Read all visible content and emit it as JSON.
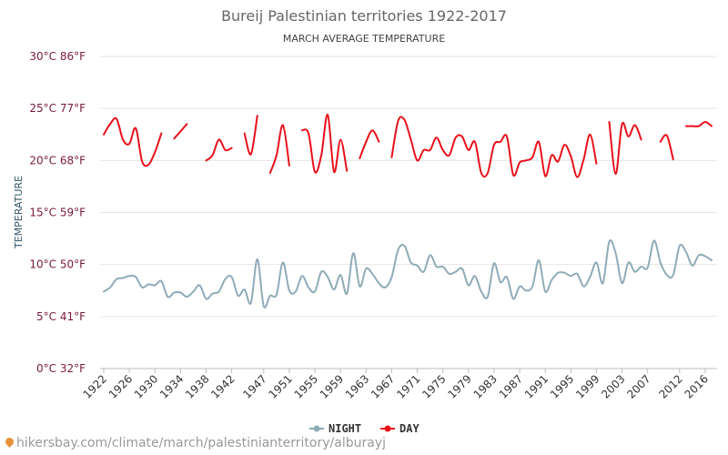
{
  "chart_data": {
    "type": "line",
    "title": "Bureij Palestinian territories 1922-2017",
    "subtitle": "MARCH AVERAGE TEMPERATURE",
    "ylabel": "TEMPERATURE",
    "ylim": [
      0,
      30
    ],
    "xlim": [
      1922,
      2017
    ],
    "yticks": [
      {
        "value": 0,
        "label": "0°C 32°F"
      },
      {
        "value": 5,
        "label": "5°C 41°F"
      },
      {
        "value": 10,
        "label": "10°C 50°F"
      },
      {
        "value": 15,
        "label": "15°C 59°F"
      },
      {
        "value": 20,
        "label": "20°C 68°F"
      },
      {
        "value": 25,
        "label": "25°C 77°F"
      },
      {
        "value": 30,
        "label": "30°C 86°F"
      }
    ],
    "xticks": [
      1922,
      1926,
      1930,
      1934,
      1938,
      1942,
      1947,
      1951,
      1955,
      1959,
      1963,
      1967,
      1971,
      1975,
      1979,
      1983,
      1987,
      1991,
      1995,
      1999,
      2003,
      2007,
      2012,
      2016
    ],
    "grid": true,
    "legend_position": "bottom",
    "series": [
      {
        "name": "NIGHT",
        "color": "#8fabb8",
        "x": [
          1922,
          1923,
          1924,
          1925,
          1926,
          1927,
          1928,
          1929,
          1930,
          1931,
          1932,
          1933,
          1934,
          1935,
          1936,
          1937,
          1938,
          1939,
          1940,
          1941,
          1942,
          1943,
          1944,
          1945,
          1946,
          1947,
          1948,
          1949,
          1950,
          1951,
          1952,
          1953,
          1954,
          1955,
          1956,
          1957,
          1958,
          1959,
          1960,
          1961,
          1962,
          1963,
          1964,
          1965,
          1966,
          1967,
          1968,
          1969,
          1970,
          1971,
          1972,
          1973,
          1974,
          1975,
          1976,
          1977,
          1978,
          1979,
          1980,
          1981,
          1982,
          1983,
          1984,
          1985,
          1986,
          1987,
          1988,
          1989,
          1990,
          1991,
          1992,
          1993,
          1994,
          1995,
          1996,
          1997,
          1998,
          1999,
          2000,
          2001,
          2002,
          2003,
          2004,
          2005,
          2006,
          2007,
          2008,
          2009,
          2010,
          2011,
          2012,
          2013,
          2014,
          2015,
          2016,
          2017
        ],
        "values": [
          7.4,
          7.8,
          8.6,
          8.7,
          8.9,
          8.8,
          7.8,
          8.1,
          8.0,
          8.4,
          6.9,
          7.3,
          7.3,
          6.9,
          7.4,
          8.0,
          6.7,
          7.2,
          7.4,
          8.6,
          8.8,
          7.0,
          7.6,
          6.3,
          10.5,
          6.0,
          7.0,
          7.1,
          10.2,
          7.5,
          7.4,
          8.9,
          7.8,
          7.4,
          9.3,
          8.8,
          7.6,
          9.0,
          7.2,
          11.1,
          7.9,
          9.6,
          9.1,
          8.2,
          7.8,
          8.8,
          11.4,
          11.8,
          10.2,
          9.9,
          9.3,
          10.9,
          9.8,
          9.8,
          9.1,
          9.3,
          9.6,
          8.0,
          8.9,
          7.4,
          6.9,
          10.1,
          8.3,
          8.8,
          6.7,
          7.9,
          7.5,
          7.9,
          10.4,
          7.4,
          8.5,
          9.2,
          9.2,
          8.9,
          9.1,
          7.9,
          8.8,
          10.2,
          8.2,
          12.2,
          11.1,
          8.2,
          10.2,
          9.3,
          9.8,
          9.7,
          12.3,
          10.2,
          9.0,
          9.0,
          11.8,
          11.2,
          9.9,
          10.9,
          10.8,
          10.4
        ]
      },
      {
        "name": "DAY",
        "color": "#e8101a",
        "x": [
          1922,
          1923,
          1924,
          1925,
          1926,
          1927,
          1928,
          1929,
          1930,
          1931,
          1932,
          1933,
          1934,
          1935,
          1936,
          1937,
          1938,
          1939,
          1940,
          1941,
          1942,
          1943,
          1944,
          1945,
          1946,
          1947,
          1948,
          1949,
          1950,
          1951,
          1952,
          1953,
          1954,
          1955,
          1956,
          1957,
          1958,
          1959,
          1960,
          1961,
          1962,
          1963,
          1964,
          1965,
          1966,
          1967,
          1968,
          1969,
          1970,
          1971,
          1972,
          1973,
          1974,
          1975,
          1976,
          1977,
          1978,
          1979,
          1980,
          1981,
          1982,
          1983,
          1984,
          1985,
          1986,
          1987,
          1988,
          1989,
          1990,
          1991,
          1992,
          1993,
          1994,
          1995,
          1996,
          1997,
          1998,
          1999,
          2000,
          2001,
          2002,
          2003,
          2004,
          2005,
          2006,
          2007,
          2008,
          2009,
          2010,
          2011,
          2012,
          2013,
          2014,
          2015,
          2016,
          2017
        ],
        "values": [
          22.5,
          23.5,
          24.0,
          22.0,
          21.6,
          23.1,
          19.9,
          19.6,
          20.8,
          22.6,
          null,
          22.1,
          22.8,
          23.5,
          null,
          null,
          20.0,
          20.5,
          22.0,
          21.0,
          21.2,
          null,
          22.6,
          20.6,
          24.3,
          null,
          18.8,
          20.5,
          23.4,
          19.5,
          null,
          22.9,
          22.6,
          18.9,
          20.5,
          24.4,
          18.9,
          22.0,
          19.0,
          null,
          20.2,
          21.8,
          22.9,
          21.8,
          null,
          20.3,
          23.8,
          23.9,
          22.0,
          20.0,
          21.0,
          21.0,
          22.2,
          21.0,
          20.5,
          22.2,
          22.3,
          21.0,
          21.8,
          18.8,
          18.8,
          21.5,
          21.8,
          22.3,
          18.6,
          19.8,
          20.0,
          20.3,
          21.8,
          18.5,
          20.5,
          19.9,
          21.5,
          20.4,
          18.4,
          20.1,
          22.5,
          19.7,
          null,
          23.7,
          18.7,
          23.5,
          22.3,
          23.4,
          22.0,
          null,
          null,
          21.8,
          22.4,
          20.1,
          null,
          23.3,
          23.3,
          23.3,
          23.7,
          23.3
        ]
      }
    ]
  },
  "footer": {
    "source_text": "hikersbay.com/climate/march/palestinianterritory/alburayj",
    "pin_icon": "location-pin-icon"
  }
}
